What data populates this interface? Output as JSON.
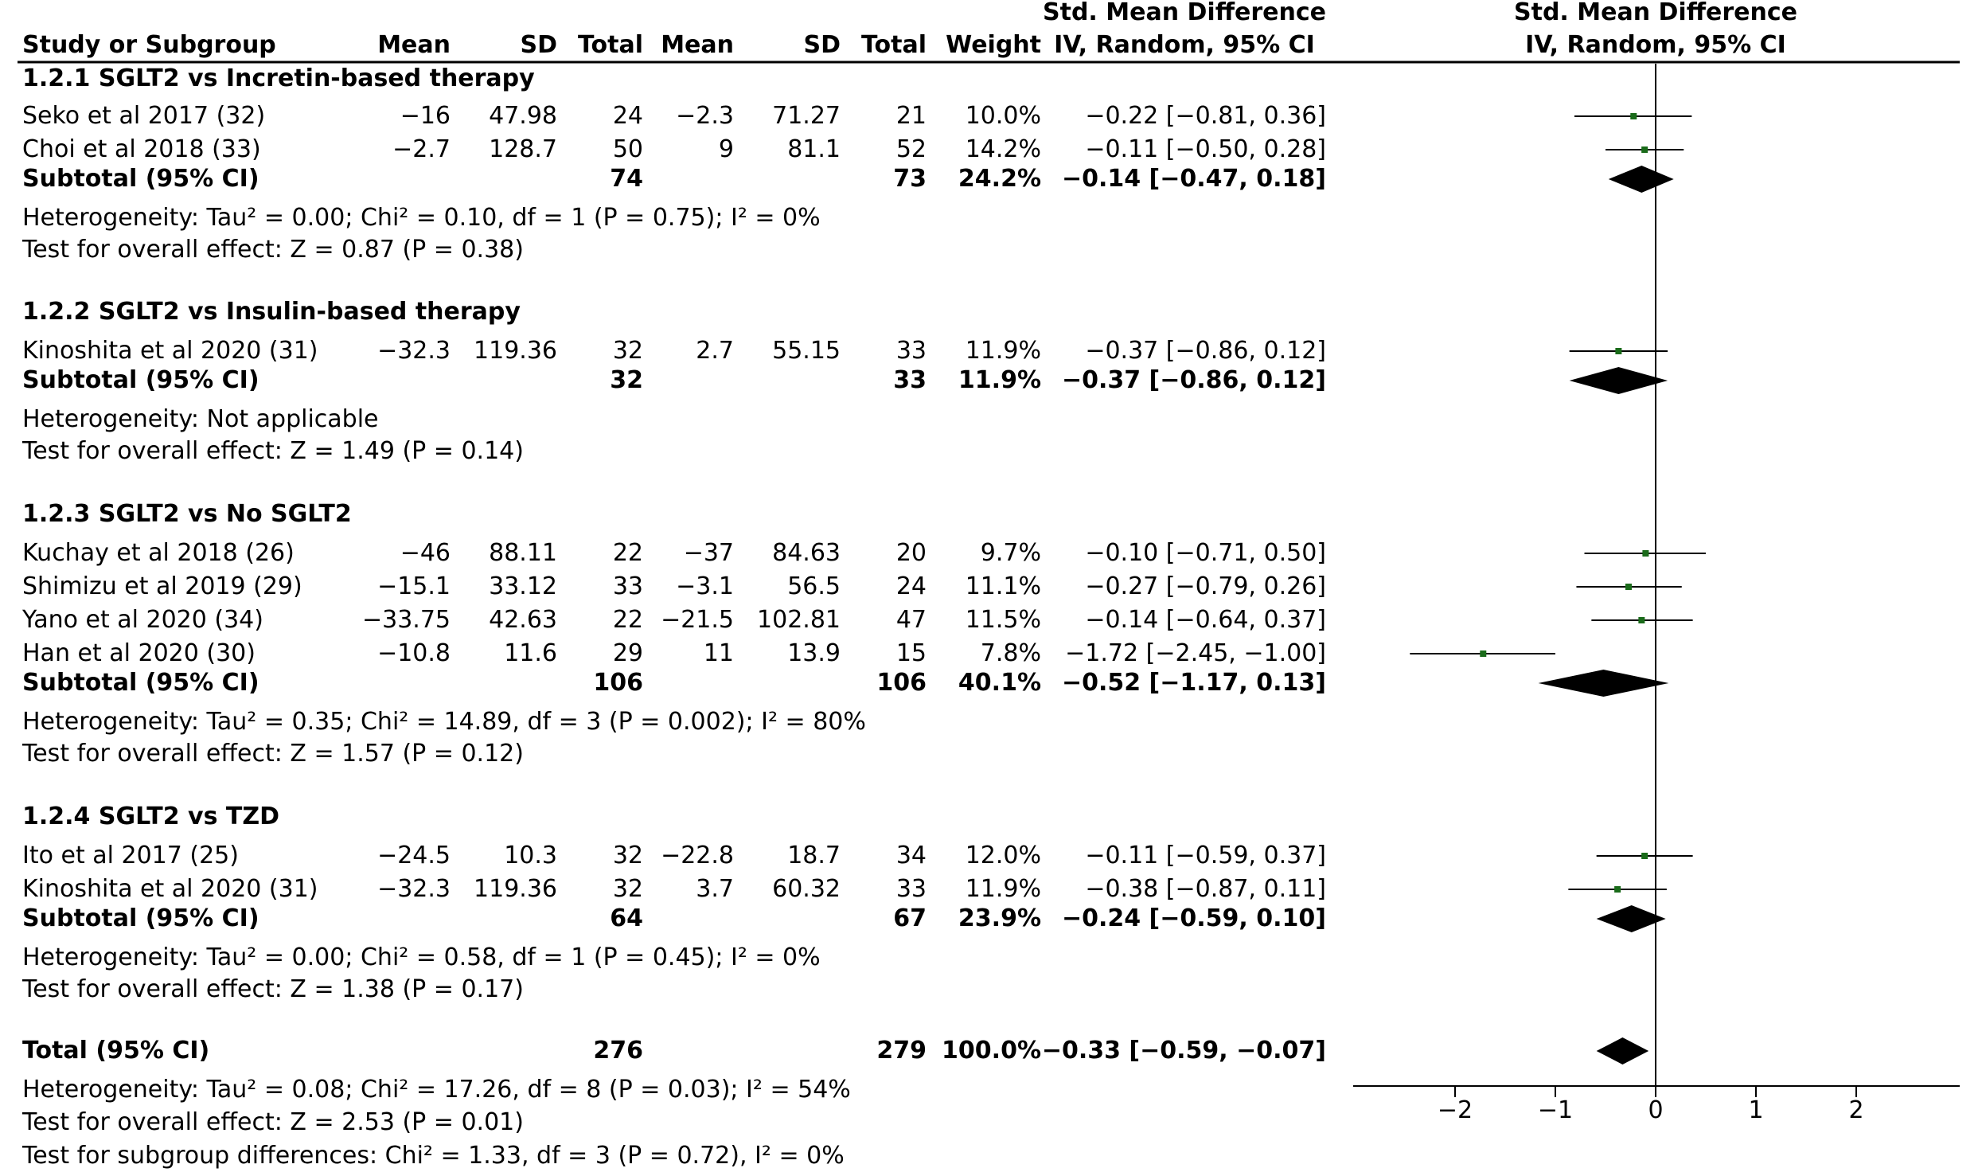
{
  "header": {
    "top_left": "Std. Mean Difference",
    "top_left_sub": "IV, Random, 95% CI",
    "top_right": "Std. Mean Difference",
    "top_right_sub": "IV, Random, 95% CI",
    "study": "Study or Subgroup",
    "mean1": "Mean",
    "sd1": "SD",
    "total1": "Total",
    "mean2": "Mean",
    "sd2": "SD",
    "total2": "Total",
    "weight": "Weight"
  },
  "groups": [
    {
      "title": "1.2.1 SGLT2 vs Incretin-based therapy",
      "studies": [
        {
          "name": "Seko et al 2017 (32)",
          "mean1": "−16",
          "sd1": "47.98",
          "total1": "24",
          "mean2": "−2.3",
          "sd2": "71.27",
          "total2": "21",
          "weight": "10.0%",
          "ci": "−0.22 [−0.81, 0.36]"
        },
        {
          "name": "Choi et al 2018 (33)",
          "mean1": "−2.7",
          "sd1": "128.7",
          "total1": "50",
          "mean2": "9",
          "sd2": "81.1",
          "total2": "52",
          "weight": "14.2%",
          "ci": "−0.11 [−0.50, 0.28]"
        }
      ],
      "subtotal": {
        "label": "Subtotal (95% CI)",
        "total1": "74",
        "total2": "73",
        "weight": "24.2%",
        "ci": "−0.14 [−0.47, 0.18]"
      },
      "heterogeneity": "Heterogeneity: Tau² = 0.00; Chi² = 0.10, df = 1 (P = 0.75); I² = 0%",
      "overall": "Test for overall effect: Z = 0.87 (P = 0.38)"
    },
    {
      "title": "1.2.2 SGLT2 vs Insulin-based therapy",
      "studies": [
        {
          "name": "Kinoshita et al 2020 (31)",
          "mean1": "−32.3",
          "sd1": "119.36",
          "total1": "32",
          "mean2": "2.7",
          "sd2": "55.15",
          "total2": "33",
          "weight": "11.9%",
          "ci": "−0.37 [−0.86, 0.12]"
        }
      ],
      "subtotal": {
        "label": "Subtotal (95% CI)",
        "total1": "32",
        "total2": "33",
        "weight": "11.9%",
        "ci": "−0.37 [−0.86, 0.12]"
      },
      "heterogeneity": "Heterogeneity: Not applicable",
      "overall": "Test for overall effect: Z = 1.49 (P = 0.14)"
    },
    {
      "title": "1.2.3 SGLT2 vs No SGLT2",
      "studies": [
        {
          "name": "Kuchay et al 2018 (26)",
          "mean1": "−46",
          "sd1": "88.11",
          "total1": "22",
          "mean2": "−37",
          "sd2": "84.63",
          "total2": "20",
          "weight": "9.7%",
          "ci": "−0.10 [−0.71, 0.50]"
        },
        {
          "name": "Shimizu et al 2019 (29)",
          "mean1": "−15.1",
          "sd1": "33.12",
          "total1": "33",
          "mean2": "−3.1",
          "sd2": "56.5",
          "total2": "24",
          "weight": "11.1%",
          "ci": "−0.27 [−0.79, 0.26]"
        },
        {
          "name": "Yano et al 2020 (34)",
          "mean1": "−33.75",
          "sd1": "42.63",
          "total1": "22",
          "mean2": "−21.5",
          "sd2": "102.81",
          "total2": "47",
          "weight": "11.5%",
          "ci": "−0.14 [−0.64, 0.37]"
        },
        {
          "name": "Han et al 2020 (30)",
          "mean1": "−10.8",
          "sd1": "11.6",
          "total1": "29",
          "mean2": "11",
          "sd2": "13.9",
          "total2": "15",
          "weight": "7.8%",
          "ci": "−1.72 [−2.45, −1.00]"
        }
      ],
      "subtotal": {
        "label": "Subtotal (95% CI)",
        "total1": "106",
        "total2": "106",
        "weight": "40.1%",
        "ci": "−0.52 [−1.17, 0.13]"
      },
      "heterogeneity": "Heterogeneity: Tau² = 0.35; Chi² = 14.89, df = 3 (P = 0.002); I² = 80%",
      "overall": "Test for overall effect: Z = 1.57 (P = 0.12)"
    },
    {
      "title": "1.2.4 SGLT2 vs TZD",
      "studies": [
        {
          "name": "Ito et al 2017 (25)",
          "mean1": "−24.5",
          "sd1": "10.3",
          "total1": "32",
          "mean2": "−22.8",
          "sd2": "18.7",
          "total2": "34",
          "weight": "12.0%",
          "ci": "−0.11 [−0.59, 0.37]"
        },
        {
          "name": "Kinoshita et al 2020 (31)",
          "mean1": "−32.3",
          "sd1": "119.36",
          "total1": "32",
          "mean2": "3.7",
          "sd2": "60.32",
          "total2": "33",
          "weight": "11.9%",
          "ci": "−0.38 [−0.87, 0.11]"
        }
      ],
      "subtotal": {
        "label": "Subtotal (95% CI)",
        "total1": "64",
        "total2": "67",
        "weight": "23.9%",
        "ci": "−0.24 [−0.59, 0.10]"
      },
      "heterogeneity": "Heterogeneity: Tau² = 0.00; Chi² = 0.58, df = 1 (P = 0.45); I² = 0%",
      "overall": "Test for overall effect: Z = 1.38 (P = 0.17)"
    }
  ],
  "total": {
    "label": "Total (95% CI)",
    "total1": "276",
    "total2": "279",
    "weight": "100.0%",
    "ci": "−0.33 [−0.59, −0.07]"
  },
  "footer": {
    "heterogeneity": "Heterogeneity: Tau² = 0.08; Chi² = 17.26, df = 8 (P = 0.03); I² = 54%",
    "overall": "Test for overall effect: Z = 2.53 (P = 0.01)",
    "subgroup": "Test for subgroup differences: Chi² = 1.33, df = 3 (P = 0.72), I² = 0%"
  },
  "colors": {
    "marker": "#1a6b1a",
    "diamond": "#000000",
    "axis": "#000000"
  },
  "chart_data": {
    "type": "scatter",
    "title": "Std. Mean Difference",
    "subtitle": "IV, Random, 95% CI",
    "xlim": [
      -3,
      3
    ],
    "xticks": [
      -2,
      -1,
      0,
      1,
      2
    ],
    "xtick_labels": [
      "−2",
      "−1",
      "0",
      "1",
      "2"
    ],
    "studies": [
      {
        "name": "Seko et al 2017 (32)",
        "estimate": -0.22,
        "lower": -0.81,
        "upper": 0.36,
        "weight": 10.0
      },
      {
        "name": "Choi et al 2018 (33)",
        "estimate": -0.11,
        "lower": -0.5,
        "upper": 0.28,
        "weight": 14.2
      },
      {
        "name": "Kinoshita et al 2020 (31)",
        "estimate": -0.37,
        "lower": -0.86,
        "upper": 0.12,
        "weight": 11.9
      },
      {
        "name": "Kuchay et al 2018 (26)",
        "estimate": -0.1,
        "lower": -0.71,
        "upper": 0.5,
        "weight": 9.7
      },
      {
        "name": "Shimizu et al 2019 (29)",
        "estimate": -0.27,
        "lower": -0.79,
        "upper": 0.26,
        "weight": 11.1
      },
      {
        "name": "Yano et al 2020 (34)",
        "estimate": -0.14,
        "lower": -0.64,
        "upper": 0.37,
        "weight": 11.5
      },
      {
        "name": "Han et al 2020 (30)",
        "estimate": -1.72,
        "lower": -2.45,
        "upper": -1.0,
        "weight": 7.8
      },
      {
        "name": "Ito et al 2017 (25)",
        "estimate": -0.11,
        "lower": -0.59,
        "upper": 0.37,
        "weight": 12.0
      },
      {
        "name": "Kinoshita et al 2020 (31)",
        "estimate": -0.38,
        "lower": -0.87,
        "upper": 0.11,
        "weight": 11.9
      }
    ],
    "pooled": [
      {
        "name": "1.2.1 Subtotal (95% CI)",
        "estimate": -0.14,
        "lower": -0.47,
        "upper": 0.18
      },
      {
        "name": "1.2.2 Subtotal (95% CI)",
        "estimate": -0.37,
        "lower": -0.86,
        "upper": 0.12
      },
      {
        "name": "1.2.3 Subtotal (95% CI)",
        "estimate": -0.52,
        "lower": -1.17,
        "upper": 0.13
      },
      {
        "name": "1.2.4 Subtotal (95% CI)",
        "estimate": -0.24,
        "lower": -0.59,
        "upper": 0.1
      },
      {
        "name": "Total (95% CI)",
        "estimate": -0.33,
        "lower": -0.59,
        "upper": -0.07
      }
    ]
  }
}
